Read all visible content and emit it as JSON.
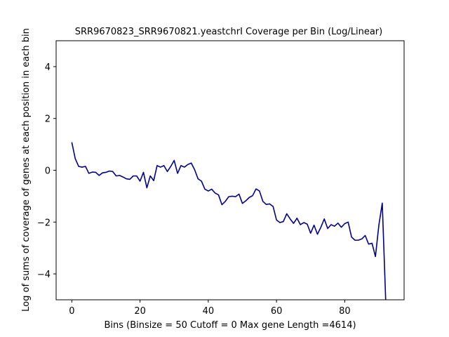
{
  "chart_data": {
    "type": "line",
    "title": "SRR9670823_SRR9670821.yeastchrI Coverage per Bin (Log/Linear)",
    "xlabel": "Bins  (Binsize = 50 Cutoff = 0 Max gene Length =4614)",
    "ylabel": "Log of sums of coverage of genes at each position in each bin",
    "xlim": [
      -4.6,
      97.4
    ],
    "ylim": [
      -5,
      5
    ],
    "xticks": [
      0,
      20,
      40,
      60,
      80
    ],
    "yticks": [
      4,
      2,
      0,
      -2,
      -4
    ],
    "grid": false,
    "line_color": "#00008b",
    "series": [
      {
        "x": [
          0,
          1,
          2,
          3,
          4,
          5,
          6,
          7,
          8,
          9,
          10,
          11,
          12,
          13,
          14,
          15,
          16,
          17,
          18,
          19,
          20,
          21,
          22,
          23,
          24,
          25,
          26,
          27,
          28,
          29,
          30,
          31,
          32,
          33,
          34,
          35,
          36,
          37,
          38,
          39,
          40,
          41,
          42,
          43,
          44,
          45,
          46,
          47,
          48,
          49,
          50,
          51,
          52,
          53,
          54,
          55,
          56,
          57,
          58,
          59,
          60,
          61,
          62,
          63,
          64,
          65,
          66,
          67,
          68,
          69,
          70,
          71,
          72,
          73,
          74,
          75,
          76,
          77,
          78,
          79,
          80,
          81,
          82,
          83,
          84,
          85,
          86,
          87,
          88,
          89,
          90,
          91,
          92
        ],
        "y": [
          1.08,
          0.45,
          0.15,
          0.12,
          0.15,
          -0.12,
          -0.07,
          -0.08,
          -0.2,
          -0.1,
          -0.08,
          -0.03,
          -0.05,
          -0.22,
          -0.2,
          -0.26,
          -0.33,
          -0.35,
          -0.22,
          -0.22,
          -0.42,
          -0.08,
          -0.68,
          -0.22,
          -0.4,
          0.18,
          0.12,
          0.18,
          -0.05,
          0.15,
          0.38,
          -0.12,
          0.18,
          0.12,
          0.22,
          0.28,
          0.02,
          -0.33,
          -0.42,
          -0.73,
          -0.8,
          -0.73,
          -0.88,
          -0.95,
          -1.33,
          -1.2,
          -1.02,
          -1.0,
          -1.02,
          -0.92,
          -1.28,
          -1.18,
          -1.05,
          -0.98,
          -0.72,
          -0.8,
          -1.2,
          -1.32,
          -1.3,
          -1.4,
          -1.92,
          -2.02,
          -1.98,
          -1.68,
          -1.88,
          -2.05,
          -1.85,
          -2.1,
          -2.02,
          -2.08,
          -2.43,
          -2.12,
          -2.47,
          -2.2,
          -1.88,
          -2.25,
          -2.1,
          -2.16,
          -2.04,
          -2.2,
          -2.06,
          -2.0,
          -2.58,
          -2.7,
          -2.7,
          -2.65,
          -2.52,
          -2.85,
          -2.82,
          -3.33,
          -2.12,
          -1.27,
          -5.0
        ]
      }
    ]
  }
}
